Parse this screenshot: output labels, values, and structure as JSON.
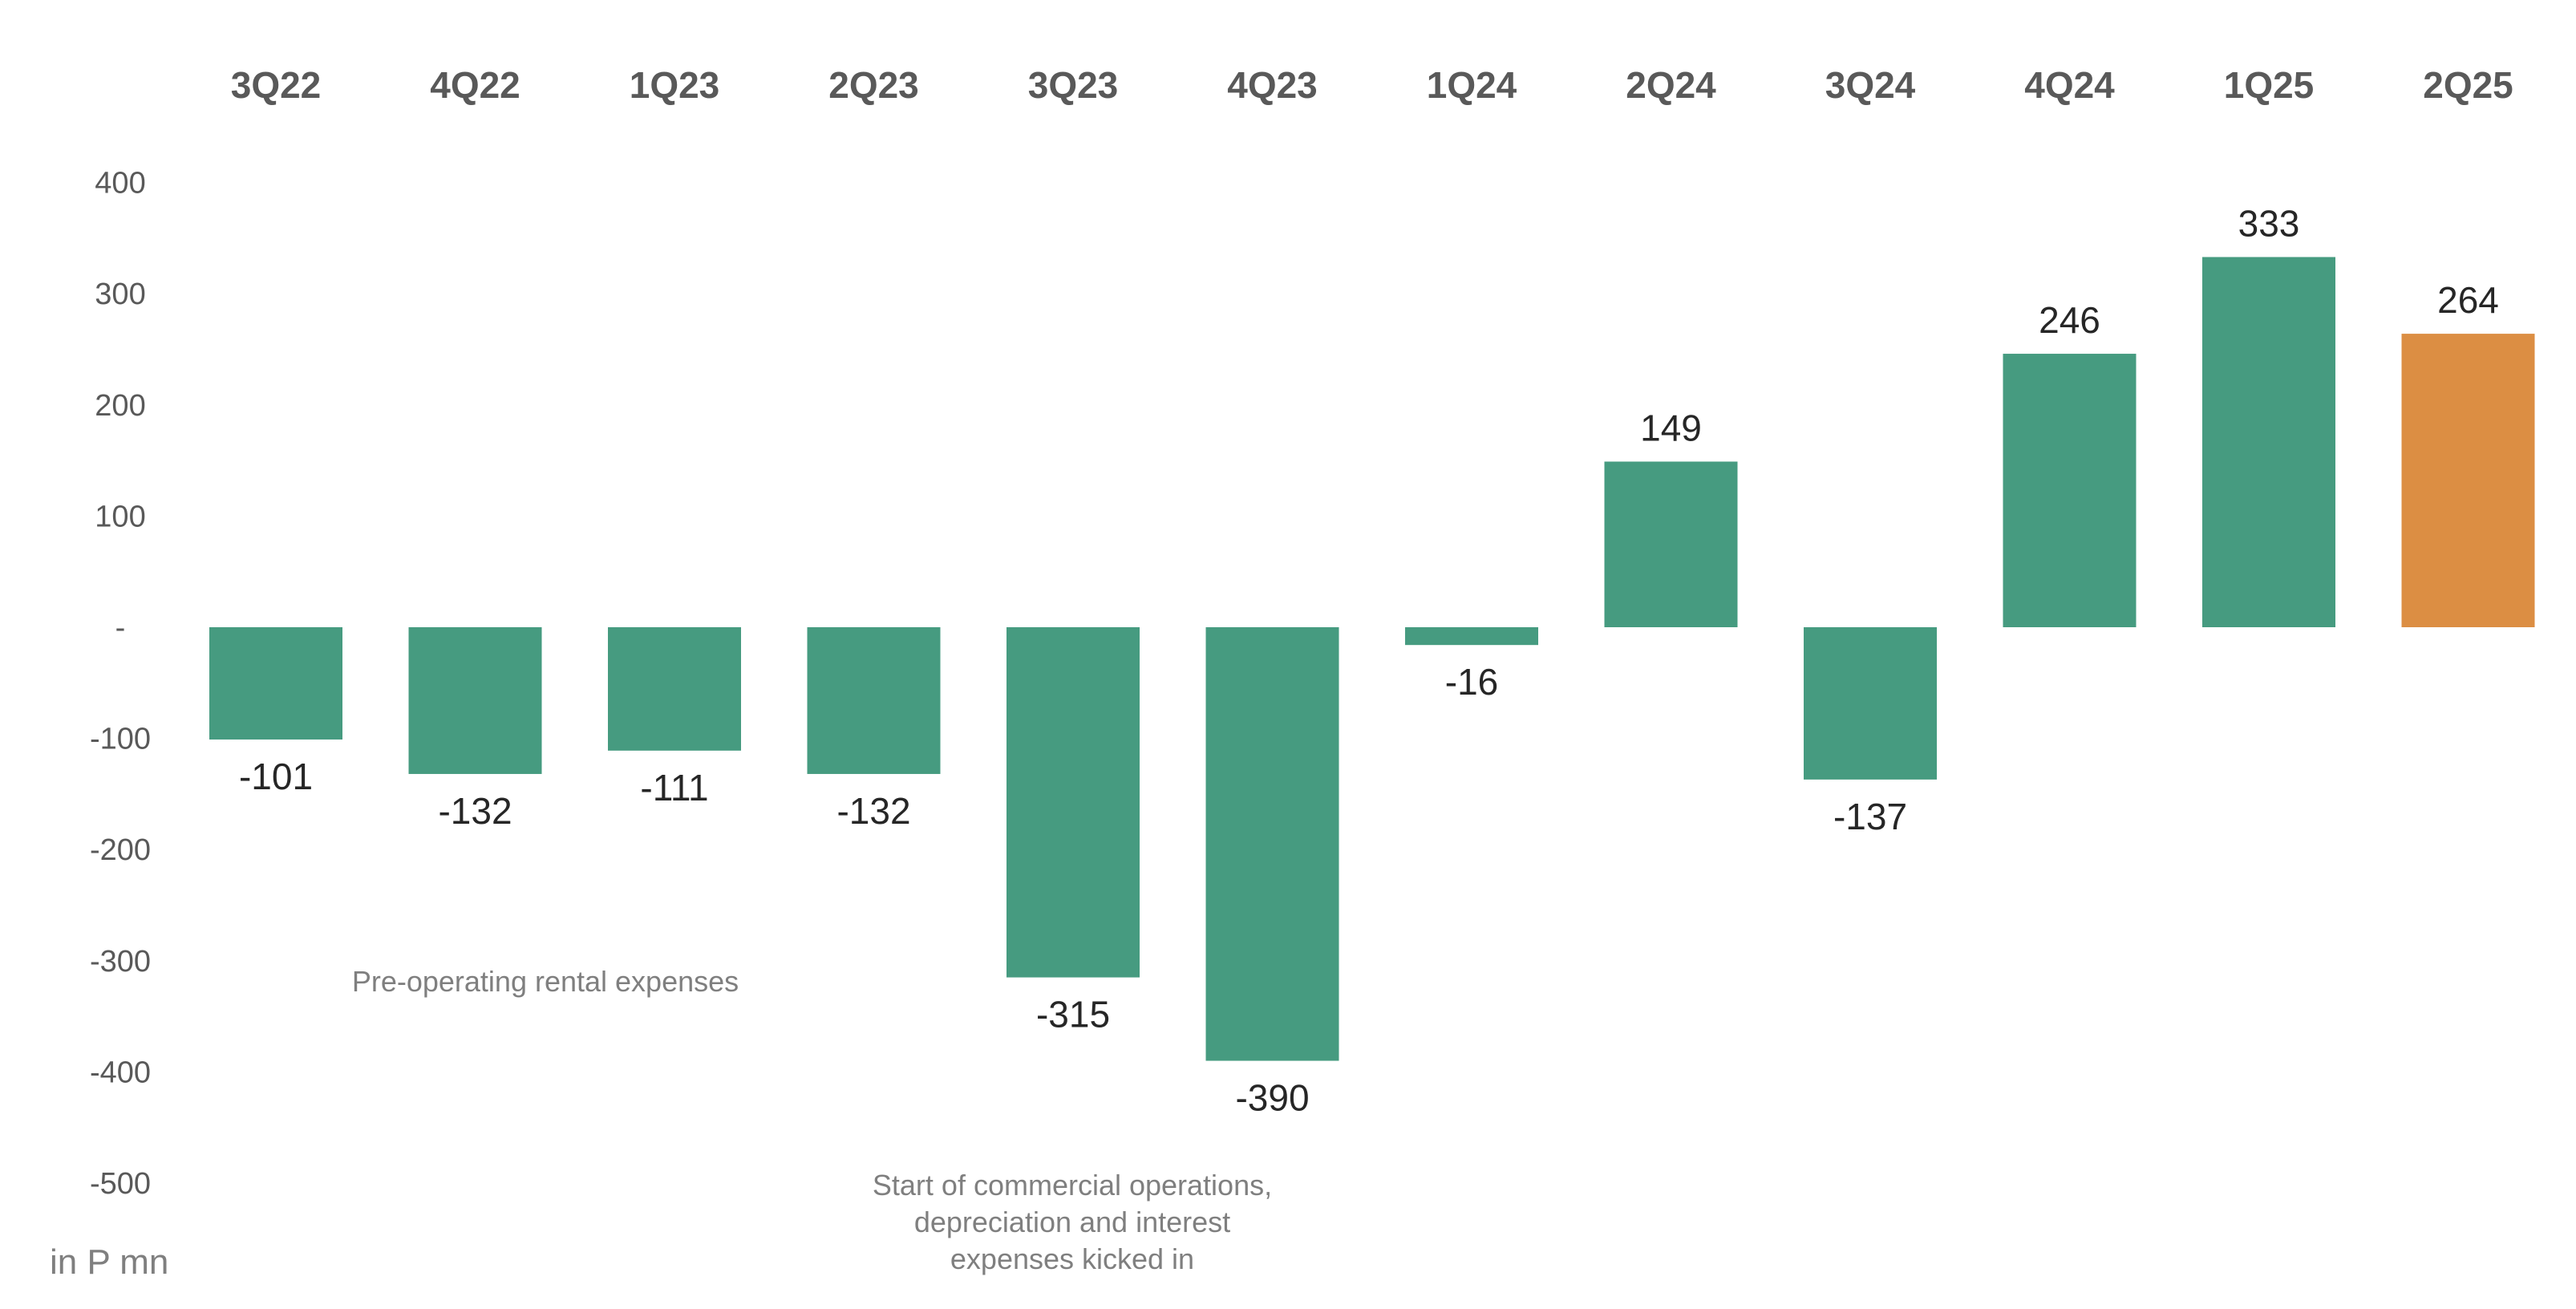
{
  "chart_data": {
    "type": "bar",
    "categories": [
      "3Q22",
      "4Q22",
      "1Q23",
      "2Q23",
      "3Q23",
      "4Q23",
      "1Q24",
      "2Q24",
      "3Q24",
      "4Q24",
      "1Q25",
      "2Q25"
    ],
    "values": [
      -101,
      -132,
      -111,
      -132,
      -315,
      -390,
      -16,
      149,
      -137,
      246,
      333,
      264
    ],
    "data_labels": [
      "-101",
      "-132",
      "-111",
      "-132",
      "-315",
      "-390",
      "-16",
      "149",
      "-137",
      "246",
      "333",
      "264"
    ],
    "ylim": [
      -500,
      400
    ],
    "yticks": [
      {
        "value": 400,
        "label": "400"
      },
      {
        "value": 300,
        "label": "300"
      },
      {
        "value": 200,
        "label": "200"
      },
      {
        "value": 100,
        "label": "100"
      },
      {
        "value": 0,
        "label": "-"
      },
      {
        "value": -100,
        "label": "-100"
      },
      {
        "value": -200,
        "label": "-200"
      },
      {
        "value": -300,
        "label": "-300"
      },
      {
        "value": -400,
        "label": "-400"
      },
      {
        "value": -500,
        "label": "-500"
      }
    ],
    "category_labels_position": "top",
    "grid": false,
    "legend": "none",
    "unit_label": "in P mn",
    "annotations": [
      {
        "id": "pre-operating",
        "lines": [
          "Pre-operating rental expenses"
        ]
      },
      {
        "id": "commercial-ops",
        "lines": [
          "Start of commercial operations,",
          "depreciation and interest",
          "expenses kicked in"
        ]
      }
    ],
    "colors": {
      "default": "#469b80",
      "highlight": "#dc8e43",
      "highlight_category": "2Q25"
    }
  }
}
